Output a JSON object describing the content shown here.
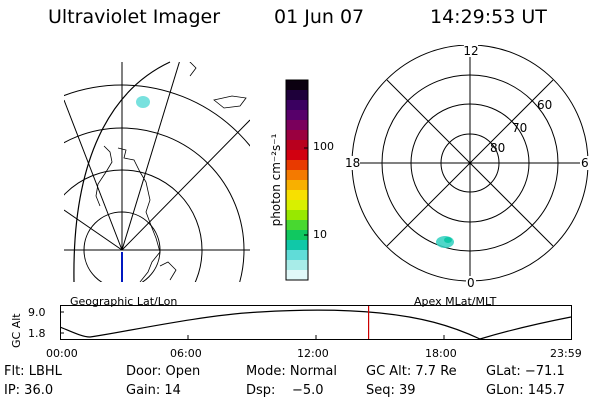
{
  "header": {
    "instrument": "Ultraviolet Imager",
    "date": "01 Jun 07",
    "time": "14:29:53 UT"
  },
  "geo_panel": {
    "label": "Geographic Lat/Lon"
  },
  "colorbar": {
    "unit": "photon cm⁻²s⁻¹",
    "ticks": [
      "100",
      "10"
    ],
    "colors": [
      "#0b0010",
      "#1e003a",
      "#3a0060",
      "#57006a",
      "#7a005c",
      "#9a0040",
      "#b8001e",
      "#d20010",
      "#e83a00",
      "#f47a00",
      "#f8b000",
      "#f8e000",
      "#d8f000",
      "#98e800",
      "#48d830",
      "#10c860",
      "#10c8a8",
      "#60dcd8",
      "#a8ece8",
      "#e0f8f8"
    ]
  },
  "polar_panel": {
    "label": "Apex MLat/MLT",
    "mlt_labels": {
      "top": "12",
      "left": "18",
      "right": "6",
      "bottom": "0"
    },
    "lat_labels": [
      "60",
      "70",
      "80"
    ]
  },
  "timeline": {
    "ylabel": "GC Alt",
    "yticks": [
      "9.0",
      "1.8"
    ],
    "xticks": [
      "00:00",
      "06:00",
      "12:00",
      "18:00",
      "23:59"
    ],
    "current_fraction": 0.604,
    "marker_color": "#cc0000"
  },
  "status": {
    "row1": {
      "filter": "Flt: LBHL",
      "door": "Door: Open",
      "mode": "Mode: Normal",
      "gc_alt": "GC Alt: 7.7 Re",
      "glat": "GLat: −71.1"
    },
    "row2": {
      "ip": "IP: 36.0",
      "gain": "Gain: 14",
      "dsp_label": "Dsp:",
      "dsp_value": "−5.0",
      "seq": "Seq: 39",
      "glon": "GLon: 145.7"
    }
  }
}
